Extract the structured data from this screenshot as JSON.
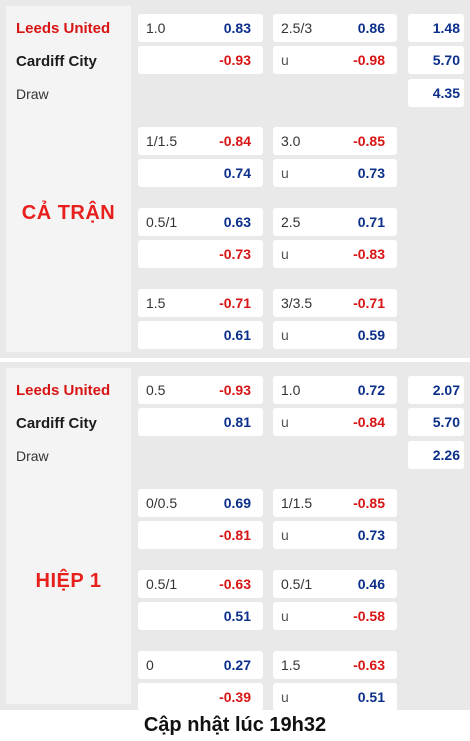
{
  "full_time": {
    "label": "CẢ TRẬN",
    "teams": {
      "home": "Leeds United",
      "away": "Cardiff City",
      "draw": "Draw"
    },
    "x12": {
      "home": "1.48",
      "away": "5.70",
      "draw": "4.35"
    },
    "rows": [
      {
        "handicap": "1.0",
        "hc_top": "0.83",
        "hc_bottom": "-0.93",
        "ou": "2.5/3",
        "ou_u": "u",
        "ou_top": "0.86",
        "ou_bottom": "-0.98"
      },
      {
        "handicap": "1/1.5",
        "hc_top": "-0.84",
        "hc_bottom": "0.74",
        "ou": "3.0",
        "ou_u": "u",
        "ou_top": "-0.85",
        "ou_bottom": "0.73"
      },
      {
        "handicap": "0.5/1",
        "hc_top": "0.63",
        "hc_bottom": "-0.73",
        "ou": "2.5",
        "ou_u": "u",
        "ou_top": "0.71",
        "ou_bottom": "-0.83"
      },
      {
        "handicap": "1.5",
        "hc_top": "-0.71",
        "hc_bottom": "0.61",
        "ou": "3/3.5",
        "ou_u": "u",
        "ou_top": "-0.71",
        "ou_bottom": "0.59"
      }
    ]
  },
  "first_half": {
    "label": "HIỆP 1",
    "teams": {
      "home": "Leeds United",
      "away": "Cardiff City",
      "draw": "Draw"
    },
    "x12": {
      "home": "2.07",
      "away": "5.70",
      "draw": "2.26"
    },
    "rows": [
      {
        "handicap": "0.5",
        "hc_top": "-0.93",
        "hc_bottom": "0.81",
        "ou": "1.0",
        "ou_u": "u",
        "ou_top": "0.72",
        "ou_bottom": "-0.84"
      },
      {
        "handicap": "0/0.5",
        "hc_top": "0.69",
        "hc_bottom": "-0.81",
        "ou": "1/1.5",
        "ou_u": "u",
        "ou_top": "-0.85",
        "ou_bottom": "0.73"
      },
      {
        "handicap": "0.5/1",
        "hc_top": "-0.63",
        "hc_bottom": "0.51",
        "ou": "0.5/1",
        "ou_u": "u",
        "ou_top": "0.46",
        "ou_bottom": "-0.58"
      },
      {
        "handicap": "0",
        "hc_top": "0.27",
        "hc_bottom": "-0.39",
        "ou": "1.5",
        "ou_u": "u",
        "ou_top": "-0.63",
        "ou_bottom": "0.51"
      }
    ]
  },
  "footer": {
    "text": "Cập nhật lúc 19h32"
  },
  "colors": {
    "positive": "#0b2f8a",
    "negative": "#d81515",
    "label": "#e8201d"
  }
}
